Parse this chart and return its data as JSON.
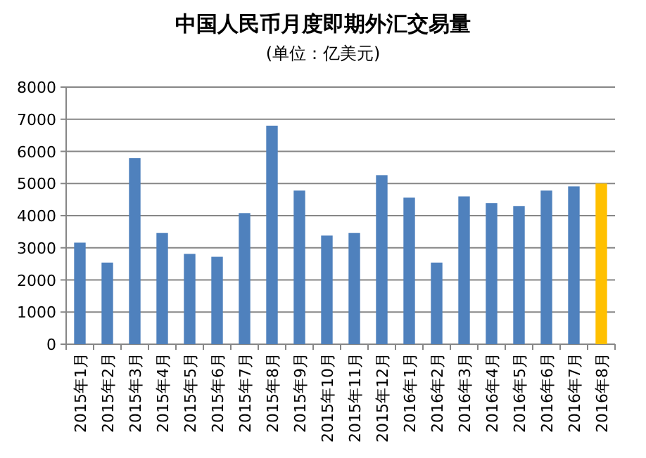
{
  "chart_data": {
    "type": "bar",
    "title": "中国人民币月度即期外汇交易量",
    "subtitle": "(单位：亿美元)",
    "categories": [
      "2015年1月",
      "2015年2月",
      "2015年3月",
      "2015年4月",
      "2015年5月",
      "2015年6月",
      "2015年7月",
      "2015年8月",
      "2015年9月",
      "2015年10月",
      "2015年11月",
      "2015年12月",
      "2016年1月",
      "2016年2月",
      "2016年3月",
      "2016年4月",
      "2016年5月",
      "2016年6月",
      "2016年7月",
      "2016年8月"
    ],
    "values": [
      3160,
      2540,
      5790,
      3460,
      2810,
      2720,
      4080,
      6800,
      4780,
      3380,
      3460,
      5260,
      4560,
      2540,
      4600,
      4390,
      4300,
      4780,
      4910,
      5000
    ],
    "colors": [
      "#4f81bd",
      "#4f81bd",
      "#4f81bd",
      "#4f81bd",
      "#4f81bd",
      "#4f81bd",
      "#4f81bd",
      "#4f81bd",
      "#4f81bd",
      "#4f81bd",
      "#4f81bd",
      "#4f81bd",
      "#4f81bd",
      "#4f81bd",
      "#4f81bd",
      "#4f81bd",
      "#4f81bd",
      "#4f81bd",
      "#4f81bd",
      "#ffc000"
    ],
    "ylim": [
      0,
      8000
    ],
    "yticks": [
      0,
      1000,
      2000,
      3000,
      4000,
      5000,
      6000,
      7000,
      8000
    ],
    "grid": "y"
  }
}
